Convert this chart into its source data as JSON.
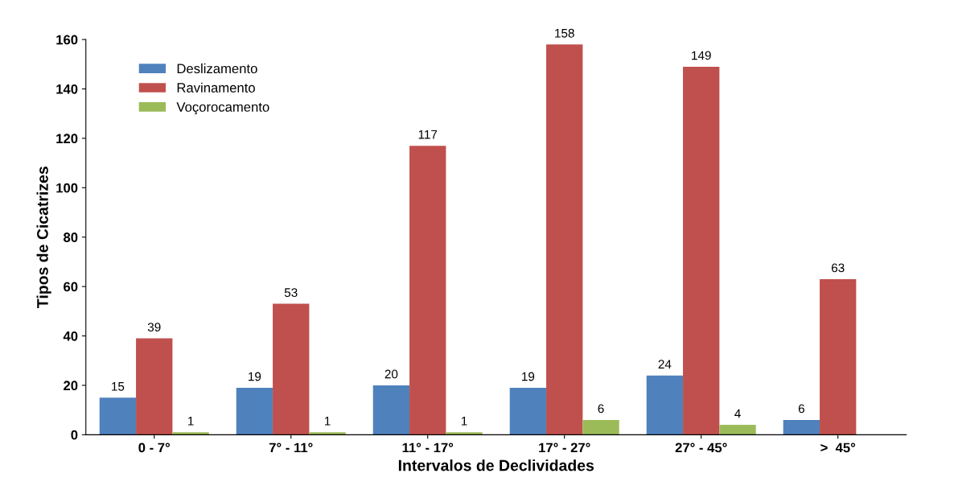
{
  "chart_data": {
    "type": "bar",
    "xlabel": "Intervalos de Declividades",
    "ylabel": "Tipos de Cicatrizes",
    "categories": [
      "0 - 7°",
      "7° - 11°",
      "11° - 17°",
      "17° - 27°",
      "27° - 45°",
      ">  45°"
    ],
    "series": [
      {
        "name": "Deslizamento",
        "color": "#4f81bd",
        "values": [
          15,
          19,
          20,
          19,
          24,
          6
        ],
        "value_labels": [
          "15",
          "19",
          "20",
          "19",
          "24",
          "6"
        ]
      },
      {
        "name": "Ravinamento",
        "color": "#c0504d",
        "values": [
          39,
          53,
          117,
          158,
          149,
          63
        ],
        "value_labels": [
          "39",
          "53",
          "117",
          "158",
          "149",
          "63"
        ]
      },
      {
        "name": "Voçorocamento",
        "color": "#9bbb59",
        "values": [
          1,
          1,
          1,
          6,
          4,
          0
        ],
        "value_labels": [
          "1",
          "1",
          "1",
          "6",
          "4",
          null
        ]
      }
    ],
    "ylim": [
      0,
      160
    ],
    "yticks": [
      0,
      20,
      40,
      60,
      80,
      100,
      120,
      140,
      160
    ],
    "grid": false,
    "legend": "top left"
  }
}
